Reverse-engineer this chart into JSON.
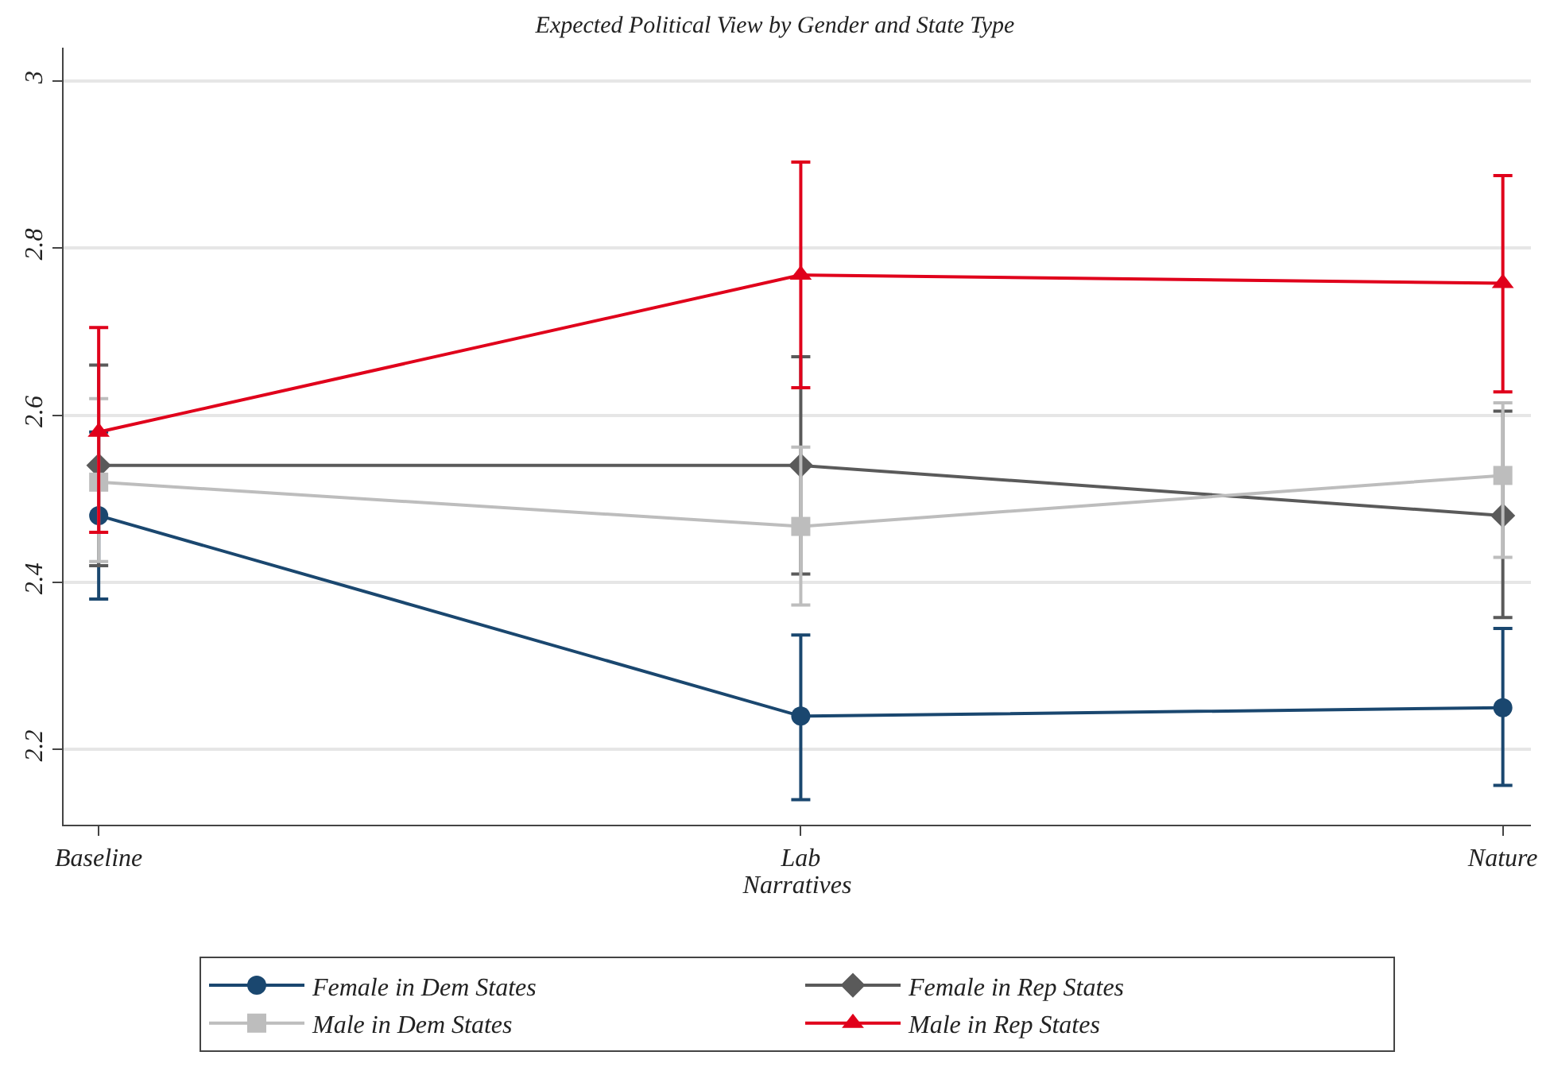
{
  "chart_data": {
    "type": "line",
    "title": "Expected Political View by Gender and State Type",
    "xlabel": "Narratives",
    "categories": [
      "Baseline",
      "Lab",
      "Nature"
    ],
    "series": [
      {
        "name": "Female in Dem States",
        "color": "#1a476f",
        "marker": "circle",
        "values": [
          2.48,
          2.24,
          2.25
        ],
        "errors": [
          [
            2.38,
            2.58
          ],
          [
            2.14,
            2.337
          ],
          [
            2.157,
            2.345
          ]
        ]
      },
      {
        "name": "Female in Rep States",
        "color": "#5a5a5a",
        "marker": "diamond",
        "values": [
          2.54,
          2.54,
          2.48
        ],
        "errors": [
          [
            2.42,
            2.66
          ],
          [
            2.41,
            2.67
          ],
          [
            2.358,
            2.605
          ]
        ]
      },
      {
        "name": "Male in Dem States",
        "color": "#bdbdbd",
        "marker": "square",
        "values": [
          2.52,
          2.467,
          2.528
        ],
        "errors": [
          [
            2.425,
            2.62
          ],
          [
            2.373,
            2.562
          ],
          [
            2.43,
            2.615
          ]
        ]
      },
      {
        "name": "Male in Rep States",
        "color": "#e0001b",
        "marker": "triangle",
        "values": [
          2.58,
          2.768,
          2.758
        ],
        "errors": [
          [
            2.46,
            2.705
          ],
          [
            2.633,
            2.903
          ],
          [
            2.628,
            2.887
          ]
        ]
      }
    ],
    "ylim": [
      2.11,
      3.04
    ],
    "yticks": [
      2.2,
      2.4,
      2.6,
      2.8,
      3
    ],
    "grid": "y",
    "legend": "bottom",
    "line_style": "solid"
  }
}
